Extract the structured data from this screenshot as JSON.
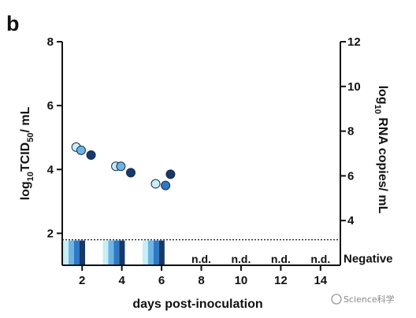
{
  "panel_label": "b",
  "watermark": "Science科学",
  "chart_data": {
    "type": "scatter",
    "x": {
      "label": "days post-inoculation",
      "range": [
        1,
        15
      ],
      "ticks": [
        2,
        4,
        6,
        8,
        10,
        12,
        14
      ]
    },
    "y_left": {
      "label_main": "log",
      "label_sub": "10",
      "label_mid": "TCID",
      "label_sub2": "50",
      "label_end": "/ mL",
      "range": [
        1,
        8
      ],
      "ticks": [
        2,
        4,
        6,
        8
      ]
    },
    "y_right": {
      "label_main": "log",
      "label_sub": "10",
      "label_end": " RNA copies/ mL",
      "range": [
        2,
        12
      ],
      "ticks": [
        4,
        6,
        8,
        10,
        12
      ],
      "extra_label": "Negative"
    },
    "limit_of_detection": 1.8,
    "colors": [
      "#c8eef6",
      "#6cb4e4",
      "#2f79c4",
      "#17386b"
    ],
    "points": [
      {
        "day": 2,
        "series": 0,
        "value": 4.7
      },
      {
        "day": 2,
        "series": 1,
        "value": 4.6
      },
      {
        "day": 2,
        "series": 3,
        "value": 4.45
      },
      {
        "day": 4,
        "series": 0,
        "value": 4.1
      },
      {
        "day": 4,
        "series": 1,
        "value": 4.1
      },
      {
        "day": 4,
        "series": 3,
        "value": 3.9
      },
      {
        "day": 6,
        "series": 0,
        "value": 3.55
      },
      {
        "day": 6,
        "series": 2,
        "value": 3.5
      },
      {
        "day": 6,
        "series": 3,
        "value": 3.85
      }
    ],
    "rna_bars_days": [
      1,
      3,
      5
    ],
    "nd_labels": [
      {
        "day": 8,
        "text": "n.d."
      },
      {
        "day": 10,
        "text": "n.d."
      },
      {
        "day": 12,
        "text": "n.d."
      },
      {
        "day": 14,
        "text": "n.d."
      }
    ]
  }
}
